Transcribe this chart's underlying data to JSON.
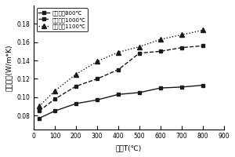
{
  "series": [
    {
      "label": "烧结温度800℃",
      "x": [
        25,
        100,
        200,
        300,
        400,
        500,
        600,
        700,
        800
      ],
      "y": [
        0.077,
        0.085,
        0.093,
        0.097,
        0.103,
        0.105,
        0.11,
        0.111,
        0.113
      ],
      "linestyle": "solid",
      "marker": "s",
      "color": "#1a1a1a",
      "markersize": 3.5,
      "linewidth": 1.0
    },
    {
      "label": "烧结温度1000℃",
      "x": [
        25,
        100,
        200,
        300,
        400,
        500,
        600,
        700,
        800
      ],
      "y": [
        0.085,
        0.098,
        0.112,
        0.12,
        0.13,
        0.148,
        0.15,
        0.154,
        0.156
      ],
      "linestyle": "dashed",
      "marker": "s",
      "color": "#1a1a1a",
      "markersize": 3.5,
      "linewidth": 1.0
    },
    {
      "label": "烧结温度1100℃",
      "x": [
        25,
        100,
        200,
        300,
        400,
        500,
        600,
        700,
        800
      ],
      "y": [
        0.09,
        0.107,
        0.125,
        0.139,
        0.149,
        0.155,
        0.163,
        0.168,
        0.173
      ],
      "linestyle": "dotted",
      "marker": "^",
      "color": "#1a1a1a",
      "markersize": 4,
      "linewidth": 1.0
    }
  ],
  "xlabel": "温度T(℃)",
  "ylabel": "导热系数(W/m*K)",
  "xlim": [
    0,
    900
  ],
  "ylim": [
    0.065,
    0.2
  ],
  "xticks": [
    0,
    100,
    200,
    300,
    400,
    500,
    600,
    700,
    800,
    900
  ],
  "yticks": [
    0.08,
    0.1,
    0.12,
    0.14,
    0.16,
    0.18
  ],
  "background_color": "#ffffff",
  "legend_fontsize": 5.0,
  "axis_fontsize": 6.5,
  "tick_fontsize": 5.5
}
